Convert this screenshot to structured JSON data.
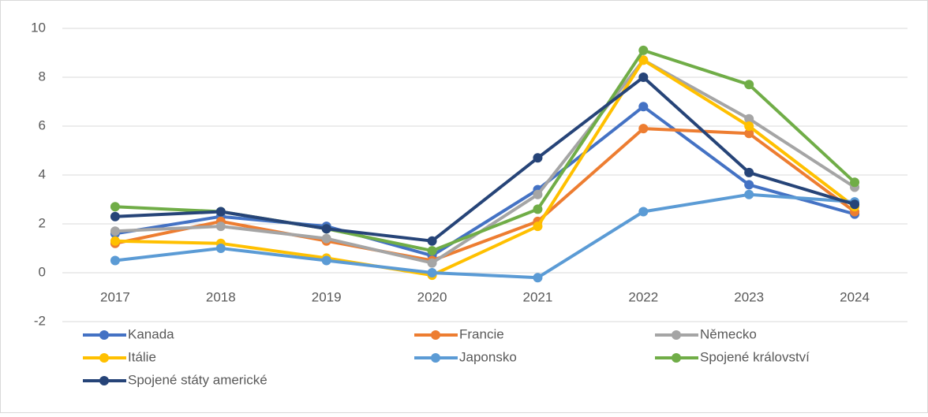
{
  "chart_data": {
    "type": "line",
    "categories": [
      "2017",
      "2018",
      "2019",
      "2020",
      "2021",
      "2022",
      "2023",
      "2024"
    ],
    "series": [
      {
        "name": "Kanada",
        "color": "#4472c4",
        "values": [
          1.6,
          2.3,
          1.9,
          0.7,
          3.4,
          6.8,
          3.6,
          2.4
        ]
      },
      {
        "name": "Francie",
        "color": "#ed7d31",
        "values": [
          1.2,
          2.1,
          1.3,
          0.5,
          2.1,
          5.9,
          5.7,
          2.5
        ]
      },
      {
        "name": "Německo",
        "color": "#a5a5a5",
        "values": [
          1.7,
          1.9,
          1.4,
          0.4,
          3.2,
          8.7,
          6.3,
          3.5
        ]
      },
      {
        "name": "Itálie",
        "color": "#ffc000",
        "values": [
          1.3,
          1.2,
          0.6,
          -0.1,
          1.9,
          8.7,
          6.0,
          2.7
        ]
      },
      {
        "name": "Japonsko",
        "color": "#5b9bd5",
        "values": [
          0.5,
          1.0,
          0.5,
          0.0,
          -0.2,
          2.5,
          3.2,
          2.9
        ]
      },
      {
        "name": "Spojené království",
        "color": "#70ad47",
        "values": [
          2.7,
          2.5,
          1.8,
          0.9,
          2.6,
          9.1,
          7.7,
          3.7
        ]
      },
      {
        "name": "Spojené státy americké",
        "color": "#264478",
        "values": [
          2.3,
          2.5,
          1.8,
          1.3,
          4.7,
          8.0,
          4.1,
          2.8
        ]
      }
    ],
    "ylim": [
      -2,
      10
    ],
    "yticks": [
      -2,
      0,
      2,
      4,
      6,
      8,
      10
    ],
    "grid": true,
    "legend": "bottom"
  }
}
